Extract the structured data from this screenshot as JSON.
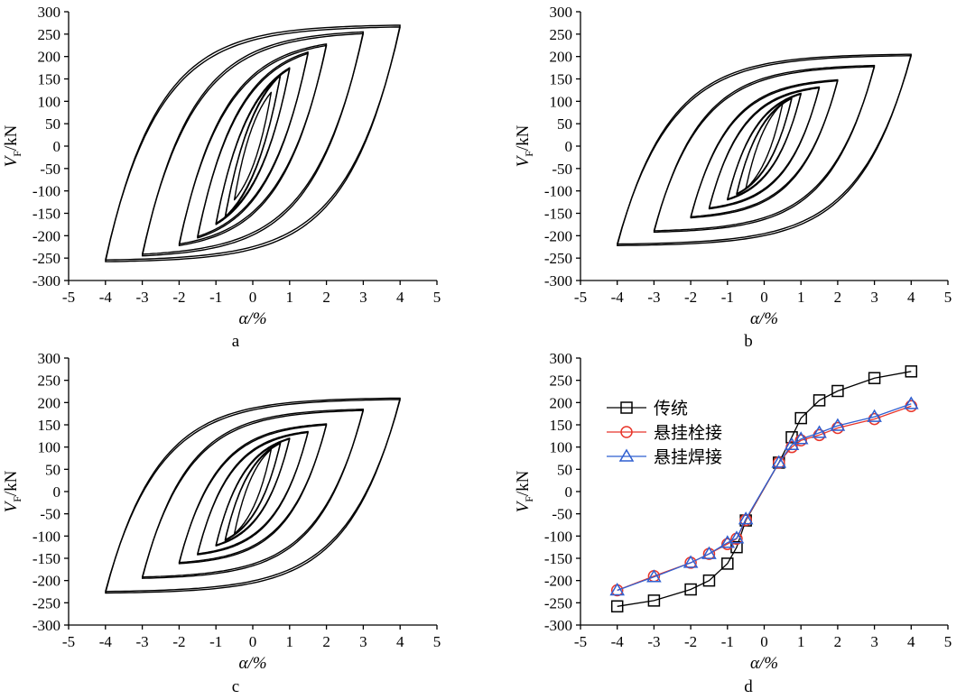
{
  "chart_data": [
    {
      "type": "line",
      "panel_label": "a",
      "xlabel": "α/%",
      "ylabel_main": "V",
      "ylabel_sub": "F",
      "ylabel_unit": "/kN",
      "xlim": [
        -5,
        5
      ],
      "ylim": [
        -300,
        300
      ],
      "xticks": [
        -5,
        -4,
        -3,
        -2,
        -1,
        0,
        1,
        2,
        3,
        4,
        5
      ],
      "yticks": [
        300,
        250,
        200,
        150,
        100,
        50,
        0,
        -50,
        -100,
        -150,
        -200,
        -250,
        -300
      ],
      "series": [
        {
          "peak_drift": 0.5,
          "vmax": 120,
          "vmin": -120,
          "k": 380
        },
        {
          "peak_drift": 0.75,
          "vmax": 160,
          "vmin": -160,
          "k": 380
        },
        {
          "peak_drift": 1.0,
          "vmax": 175,
          "vmin": -175,
          "k": 380
        },
        {
          "peak_drift": 1.5,
          "vmax": 210,
          "vmin": -205,
          "k": 380
        },
        {
          "peak_drift": 2.0,
          "vmax": 228,
          "vmin": -222,
          "k": 380
        },
        {
          "peak_drift": 3.0,
          "vmax": 255,
          "vmin": -245,
          "k": 380
        },
        {
          "peak_drift": 4.0,
          "vmax": 270,
          "vmin": -258,
          "k": 380
        }
      ]
    },
    {
      "type": "line",
      "panel_label": "b",
      "xlabel": "α/%",
      "ylabel_main": "V",
      "ylabel_sub": "F",
      "ylabel_unit": "/kN",
      "xlim": [
        -5,
        5
      ],
      "ylim": [
        -300,
        300
      ],
      "xticks": [
        -5,
        -4,
        -3,
        -2,
        -1,
        0,
        1,
        2,
        3,
        4,
        5
      ],
      "yticks": [
        300,
        250,
        200,
        150,
        100,
        50,
        0,
        -50,
        -100,
        -150,
        -200,
        -250,
        -300
      ],
      "series": [
        {
          "peak_drift": 0.5,
          "vmax": 95,
          "vmin": -95,
          "k": 310
        },
        {
          "peak_drift": 0.75,
          "vmax": 108,
          "vmin": -108,
          "k": 310
        },
        {
          "peak_drift": 1.0,
          "vmax": 118,
          "vmin": -120,
          "k": 310
        },
        {
          "peak_drift": 1.5,
          "vmax": 132,
          "vmin": -140,
          "k": 310
        },
        {
          "peak_drift": 2.0,
          "vmax": 148,
          "vmin": -160,
          "k": 310
        },
        {
          "peak_drift": 3.0,
          "vmax": 180,
          "vmin": -192,
          "k": 310
        },
        {
          "peak_drift": 4.0,
          "vmax": 205,
          "vmin": -222,
          "k": 310
        }
      ]
    },
    {
      "type": "line",
      "panel_label": "c",
      "xlabel": "α/%",
      "ylabel_main": "V",
      "ylabel_sub": "F",
      "ylabel_unit": "/kN",
      "xlim": [
        -5,
        5
      ],
      "ylim": [
        -300,
        300
      ],
      "xticks": [
        -5,
        -4,
        -3,
        -2,
        -1,
        0,
        1,
        2,
        3,
        4,
        5
      ],
      "yticks": [
        300,
        250,
        200,
        150,
        100,
        50,
        0,
        -50,
        -100,
        -150,
        -200,
        -250,
        -300
      ],
      "series": [
        {
          "peak_drift": 0.5,
          "vmax": 95,
          "vmin": -95,
          "k": 320
        },
        {
          "peak_drift": 0.75,
          "vmax": 110,
          "vmin": -110,
          "k": 320
        },
        {
          "peak_drift": 1.0,
          "vmax": 120,
          "vmin": -122,
          "k": 320
        },
        {
          "peak_drift": 1.5,
          "vmax": 135,
          "vmin": -142,
          "k": 320
        },
        {
          "peak_drift": 2.0,
          "vmax": 152,
          "vmin": -162,
          "k": 320
        },
        {
          "peak_drift": 3.0,
          "vmax": 185,
          "vmin": -195,
          "k": 320
        },
        {
          "peak_drift": 4.0,
          "vmax": 210,
          "vmin": -228,
          "k": 320
        }
      ]
    },
    {
      "type": "line",
      "panel_label": "d",
      "xlabel": "α/%",
      "ylabel_main": "V",
      "ylabel_sub": "F",
      "ylabel_unit": "/kN",
      "xlim": [
        -5,
        5
      ],
      "ylim": [
        -300,
        300
      ],
      "xticks": [
        -5,
        -4,
        -3,
        -2,
        -1,
        0,
        1,
        2,
        3,
        4,
        5
      ],
      "yticks": [
        300,
        250,
        200,
        150,
        100,
        50,
        0,
        -50,
        -100,
        -150,
        -200,
        -250,
        -300
      ],
      "legend": "top-left",
      "series": [
        {
          "name": "传统",
          "color": "#000000",
          "marker": "square",
          "x": [
            -4,
            -3,
            -2,
            -1.5,
            -1,
            -0.75,
            -0.5,
            0.4,
            0.75,
            1,
            1.5,
            2,
            3,
            4
          ],
          "y": [
            -258,
            -245,
            -220,
            -200,
            -162,
            -125,
            -65,
            65,
            122,
            165,
            205,
            226,
            255,
            270
          ]
        },
        {
          "name": "悬挂栓接",
          "color": "#e8352a",
          "marker": "circle",
          "x": [
            -4,
            -3,
            -2,
            -1.5,
            -1,
            -0.75,
            -0.5,
            0.4,
            0.75,
            1,
            1.5,
            2,
            3,
            4
          ],
          "y": [
            -222,
            -190,
            -160,
            -140,
            -118,
            -106,
            -64,
            65,
            100,
            115,
            127,
            143,
            163,
            192
          ]
        },
        {
          "name": "悬挂焊接",
          "color": "#2f5fd0",
          "marker": "triangle",
          "x": [
            -4,
            -3,
            -2,
            -1.5,
            -1,
            -0.75,
            -0.5,
            0.4,
            0.75,
            1,
            1.5,
            2,
            3,
            4
          ],
          "y": [
            -222,
            -192,
            -160,
            -140,
            -115,
            -105,
            -62,
            65,
            105,
            118,
            132,
            148,
            168,
            197
          ]
        }
      ]
    }
  ]
}
